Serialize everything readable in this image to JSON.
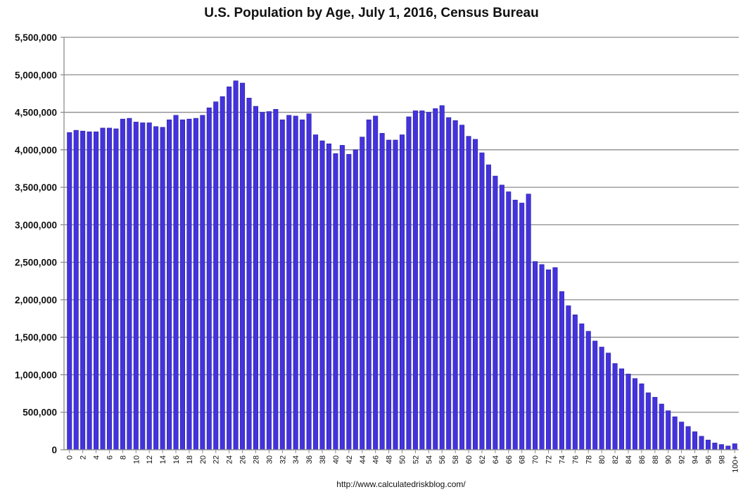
{
  "chart_data": {
    "type": "bar",
    "title": "U.S. Population by Age, July 1, 2016, Census Bureau",
    "source": "http://www.calculatedriskblog.com/",
    "xlabel": "",
    "ylabel": "",
    "ylim": [
      0,
      5500000
    ],
    "yticks": [
      0,
      500000,
      1000000,
      1500000,
      2000000,
      2500000,
      3000000,
      3500000,
      4000000,
      4500000,
      5000000,
      5500000
    ],
    "ytick_labels": [
      "0",
      "500,000",
      "1,000,000",
      "1,500,000",
      "2,000,000",
      "2,500,000",
      "3,000,000",
      "3,500,000",
      "4,000,000",
      "4,500,000",
      "5,000,000",
      "5,500,000"
    ],
    "grid": true,
    "bar_color": "#4433dd",
    "categories": [
      "0",
      "1",
      "2",
      "3",
      "4",
      "5",
      "6",
      "7",
      "8",
      "9",
      "10",
      "11",
      "12",
      "13",
      "14",
      "15",
      "16",
      "17",
      "18",
      "19",
      "20",
      "21",
      "22",
      "23",
      "24",
      "25",
      "26",
      "27",
      "28",
      "29",
      "30",
      "31",
      "32",
      "33",
      "34",
      "35",
      "36",
      "37",
      "38",
      "39",
      "40",
      "41",
      "42",
      "43",
      "44",
      "45",
      "46",
      "47",
      "48",
      "49",
      "50",
      "51",
      "52",
      "53",
      "54",
      "55",
      "56",
      "57",
      "58",
      "59",
      "60",
      "61",
      "62",
      "63",
      "64",
      "65",
      "66",
      "67",
      "68",
      "69",
      "70",
      "71",
      "72",
      "73",
      "74",
      "75",
      "76",
      "77",
      "78",
      "79",
      "80",
      "81",
      "82",
      "83",
      "84",
      "85",
      "86",
      "87",
      "88",
      "89",
      "90",
      "91",
      "92",
      "93",
      "94",
      "95",
      "96",
      "97",
      "98",
      "99",
      "100+"
    ],
    "values": [
      4230000,
      4260000,
      4250000,
      4240000,
      4240000,
      4290000,
      4290000,
      4280000,
      4410000,
      4420000,
      4370000,
      4360000,
      4360000,
      4310000,
      4300000,
      4400000,
      4460000,
      4400000,
      4410000,
      4420000,
      4460000,
      4560000,
      4640000,
      4710000,
      4840000,
      4920000,
      4890000,
      4690000,
      4580000,
      4500000,
      4510000,
      4540000,
      4400000,
      4460000,
      4450000,
      4400000,
      4480000,
      4200000,
      4120000,
      4080000,
      3950000,
      4060000,
      3940000,
      4000000,
      4170000,
      4400000,
      4450000,
      4220000,
      4130000,
      4130000,
      4200000,
      4440000,
      4520000,
      4520000,
      4500000,
      4550000,
      4590000,
      4430000,
      4390000,
      4330000,
      4180000,
      4140000,
      3960000,
      3800000,
      3650000,
      3530000,
      3440000,
      3330000,
      3290000,
      3410000,
      2510000,
      2470000,
      2400000,
      2430000,
      2110000,
      1920000,
      1800000,
      1680000,
      1580000,
      1450000,
      1370000,
      1290000,
      1150000,
      1080000,
      1010000,
      950000,
      880000,
      760000,
      700000,
      610000,
      520000,
      440000,
      370000,
      310000,
      240000,
      180000,
      130000,
      90000,
      70000,
      50000,
      80000
    ]
  }
}
